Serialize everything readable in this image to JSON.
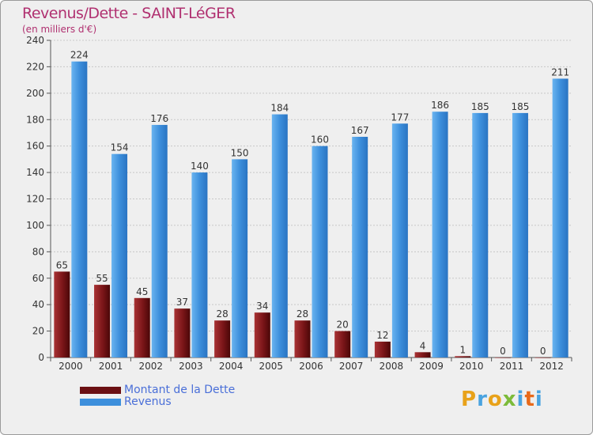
{
  "header": {
    "title": "Revenus/Dette - SAINT-LéGER",
    "subtitle": "(en milliers d'€)"
  },
  "legend": {
    "debt_label": "Montant de la Dette",
    "revenue_label": "Revenus"
  },
  "logo": {
    "text": "Proxiti"
  },
  "colors": {
    "debt": "#7a1518",
    "revenue": "#3d8fdc",
    "background": "#efefef",
    "title": "#b03070"
  },
  "chart_data": {
    "type": "bar",
    "title": "Revenus/Dette - SAINT-LéGER",
    "subtitle": "(en milliers d'€)",
    "xlabel": "",
    "ylabel": "",
    "ylim": [
      0,
      240
    ],
    "yticks": [
      0,
      20,
      40,
      60,
      80,
      100,
      120,
      140,
      160,
      180,
      200,
      220,
      240
    ],
    "grid": true,
    "legend_position": "bottom-left",
    "categories": [
      "2000",
      "2001",
      "2002",
      "2003",
      "2004",
      "2005",
      "2006",
      "2007",
      "2008",
      "2009",
      "2010",
      "2011",
      "2012"
    ],
    "series": [
      {
        "name": "Montant de la Dette",
        "values": [
          65,
          55,
          45,
          37,
          28,
          34,
          28,
          20,
          12,
          4,
          1,
          0,
          0
        ]
      },
      {
        "name": "Revenus",
        "values": [
          224,
          154,
          176,
          140,
          150,
          184,
          160,
          167,
          177,
          186,
          185,
          185,
          211
        ]
      }
    ]
  }
}
